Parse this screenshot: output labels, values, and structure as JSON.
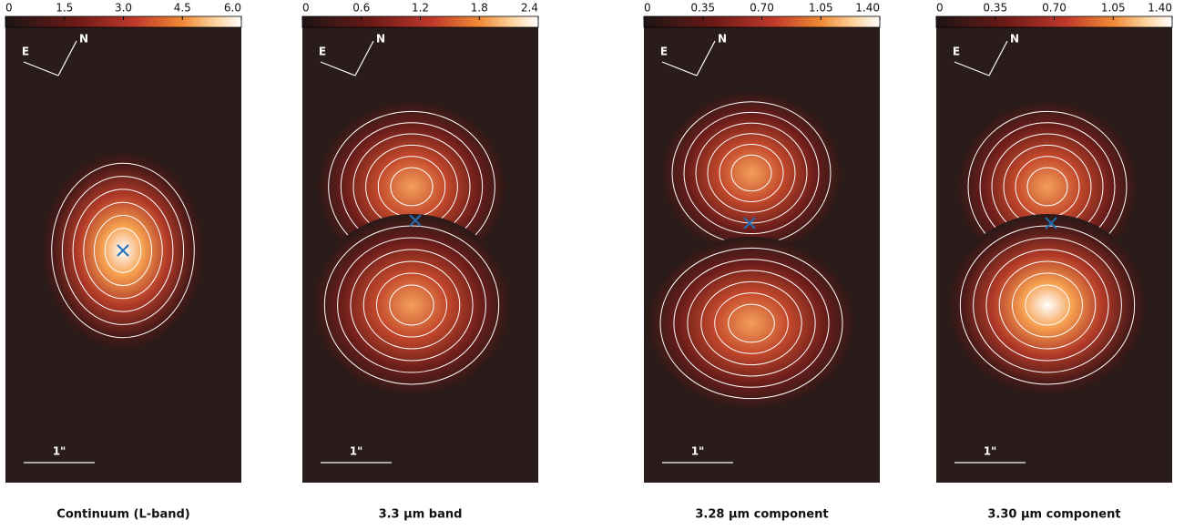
{
  "chart_data": [
    {
      "type": "image",
      "title": "Continuum (L-band)",
      "xlim": [
        0,
        6
      ],
      "xticks": [
        0,
        1.5,
        {
          "value": 3,
          "label": "3.0"
        },
        4.5,
        {
          "value": 6,
          "label": "6.0"
        }
      ],
      "compass": [
        "E",
        "N"
      ],
      "scale_label": "1\""
    },
    {
      "type": "image",
      "title": "3.3 µm band",
      "xlim": [
        0,
        2.4
      ],
      "xticks": [
        0,
        0.6,
        1.2,
        1.8,
        2.4
      ],
      "compass": [
        "E",
        "N"
      ],
      "scale_label": "1\""
    },
    {
      "type": "image",
      "title": "3.28 µm component",
      "xlim": [
        0,
        1.4
      ],
      "xticks": [
        0,
        0.35,
        {
          "value": 0.7,
          "label": "0.70"
        },
        1.05,
        {
          "value": 1.4,
          "label": "1.40"
        }
      ],
      "compass": [
        "E",
        "N"
      ],
      "scale_label": "1\""
    },
    {
      "type": "image",
      "title": "3.30 µm component",
      "xlim": [
        0,
        1.4
      ],
      "xticks": [
        0,
        0.35,
        {
          "value": 0.7,
          "label": "0.70"
        },
        1.05,
        {
          "value": 1.4,
          "label": "1.40"
        }
      ],
      "compass": [
        "E",
        "N"
      ],
      "scale_label": "1\""
    }
  ]
}
